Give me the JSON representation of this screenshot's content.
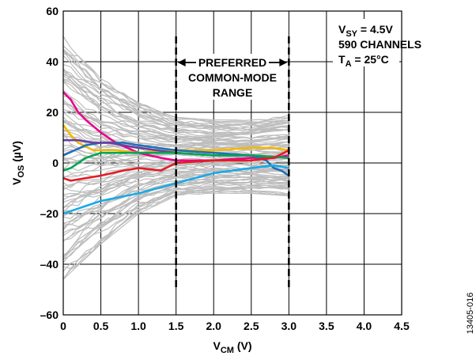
{
  "chart_data": {
    "type": "line",
    "xlabel": {
      "main": "V",
      "sub": "CM",
      "unit": " (V)"
    },
    "ylabel": {
      "main": "V",
      "sub": "OS",
      "unit": " (µV)"
    },
    "xlim": [
      0,
      4.5
    ],
    "ylim": [
      -60,
      60
    ],
    "xticks": [
      "0",
      "0.5",
      "1.0",
      "1.5",
      "2.0",
      "2.5",
      "3.0",
      "3.5",
      "4.0",
      "4.5"
    ],
    "yticks": [
      "60",
      "40",
      "20",
      "0",
      "–20",
      "–40",
      "–60"
    ],
    "grid": true,
    "annotations": {
      "supply": {
        "main": "V",
        "sub": "SY",
        "rest": " = 4.5V"
      },
      "channels": "590 CHANNELS",
      "temp": {
        "main": "T",
        "sub": "A",
        "rest": " = 25°C"
      },
      "range_line1": "PREFERRED",
      "range_line2": "COMMON-MODE",
      "range_line3": "RANGE",
      "range_bounds": [
        1.5,
        3.0
      ]
    },
    "figure_id": "13405-016",
    "envelope": {
      "x": [
        0,
        0.5,
        1.0,
        1.5,
        2.0,
        2.5,
        3.0
      ],
      "upper": [
        50,
        34,
        24,
        18,
        17,
        17,
        19
      ],
      "lower": [
        -46,
        -32,
        -20,
        -13,
        -12,
        -12,
        -13
      ]
    },
    "series": [
      {
        "color": "#ec008c",
        "x": [
          0,
          0.1,
          0.2,
          0.3,
          0.5,
          0.7,
          1.0,
          1.3,
          1.5,
          2.0,
          2.5,
          2.8,
          3.0
        ],
        "y": [
          28,
          25,
          20,
          17,
          12,
          8,
          4,
          2,
          1,
          1,
          2,
          2,
          3
        ]
      },
      {
        "color": "#f5b800",
        "x": [
          0,
          0.1,
          0.2,
          0.4,
          0.5,
          0.7,
          1.0,
          1.5,
          2.0,
          2.5,
          2.8,
          3.0
        ],
        "y": [
          15,
          11,
          8,
          5,
          5,
          5,
          4,
          5,
          5,
          6,
          6,
          5
        ]
      },
      {
        "color": "#1f6fb5",
        "x": [
          0,
          0.15,
          0.3,
          0.5,
          0.8,
          1.0,
          1.5,
          2.0,
          2.5,
          2.7,
          2.8,
          2.9,
          3.0
        ],
        "y": [
          3,
          5,
          7,
          8,
          8,
          7,
          5,
          4,
          3,
          1,
          -2,
          -3,
          -5
        ]
      },
      {
        "color": "#6a3fa0",
        "x": [
          0,
          0.2,
          0.4,
          0.6,
          0.8,
          1.0,
          1.5,
          2.0,
          2.5,
          3.0
        ],
        "y": [
          9,
          9,
          8,
          8,
          7,
          6,
          4,
          3,
          3,
          2
        ]
      },
      {
        "color": "#00a651",
        "x": [
          0,
          0.1,
          0.2,
          0.3,
          0.5,
          1.0,
          1.5,
          2.0,
          2.5,
          3.0
        ],
        "y": [
          -3,
          -2,
          0,
          2,
          4,
          4,
          4,
          3,
          3,
          2
        ]
      },
      {
        "color": "#e31b23",
        "x": [
          0,
          0.1,
          0.3,
          0.5,
          0.8,
          1.0,
          1.3,
          1.5,
          2.0,
          2.5,
          2.8,
          3.0
        ],
        "y": [
          -6,
          -7,
          -6,
          -5,
          -3,
          -2,
          -3,
          0,
          1,
          1,
          2,
          5
        ]
      },
      {
        "color": "#1aa9e6",
        "x": [
          0,
          0.1,
          0.3,
          0.5,
          1.0,
          1.5,
          2.0,
          2.5,
          2.8,
          3.0
        ],
        "y": [
          -20,
          -19,
          -17,
          -15,
          -12,
          -8,
          -4,
          -2,
          -1,
          -2
        ]
      }
    ]
  }
}
